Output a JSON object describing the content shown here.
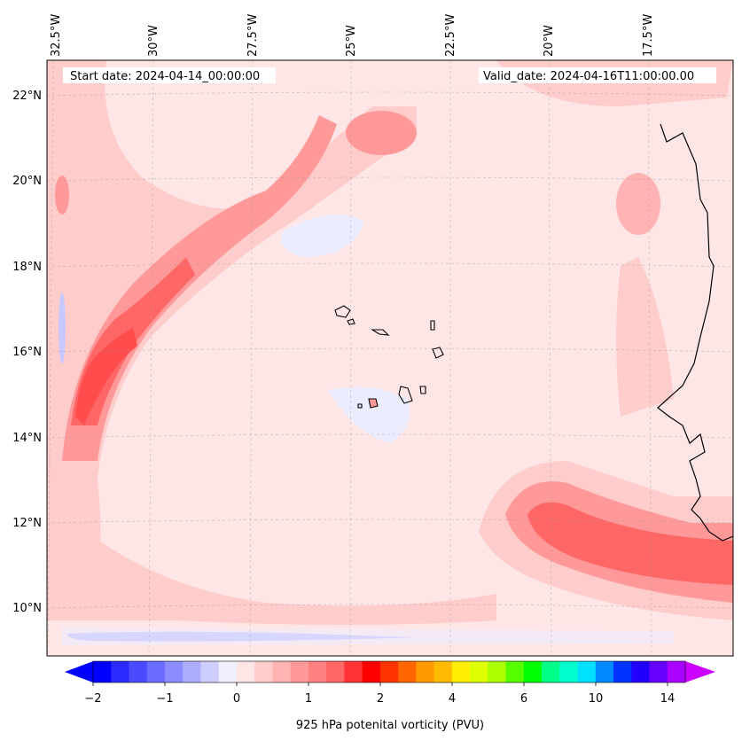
{
  "header": {
    "start_date": "Start date: 2024-04-14_00:00:00",
    "valid_date": "Valid_date: 2024-04-16T11:00:00.00"
  },
  "axes": {
    "lon_labels": [
      "32.5°W",
      "30°W",
      "27.5°W",
      "25°W",
      "22.5°W",
      "20°W",
      "17.5°W"
    ],
    "lat_labels": [
      "22°N",
      "20°N",
      "18°N",
      "16°N",
      "14°N",
      "12°N",
      "10°N"
    ]
  },
  "colorbar": {
    "label": "925 hPa potenital vorticity (PVU)",
    "ticks": [
      "−2",
      "−1",
      "0",
      "1",
      "2",
      "4",
      "6",
      "10",
      "14"
    ],
    "colors": [
      "#0000ff",
      "#2b2bff",
      "#4a4aff",
      "#6b6bff",
      "#8c8cff",
      "#adadff",
      "#cfcfff",
      "#efefff",
      "#ffe6e6",
      "#ffcccc",
      "#ffb3b3",
      "#ff9999",
      "#ff8080",
      "#ff6666",
      "#ff3333",
      "#ff0000",
      "#ff3300",
      "#ff6600",
      "#ff9900",
      "#ffbb00",
      "#ffee00",
      "#ddff00",
      "#aaff00",
      "#55ff00",
      "#00ff00",
      "#00ff88",
      "#00ffcc",
      "#00e0ff",
      "#0088ff",
      "#0033ff",
      "#2200ff",
      "#6600ff",
      "#aa00ff"
    ],
    "under_color": "#0000ff",
    "over_color": "#cc00ff"
  },
  "map_colors": {
    "background": "#ffe6e6",
    "light": "#ffcccc",
    "medium": "#ff9999",
    "strong": "#ff6666",
    "core": "#ff4d4d",
    "negative": "#ececff",
    "negative_strong": "#b3b3ff",
    "coast": "#000000"
  }
}
